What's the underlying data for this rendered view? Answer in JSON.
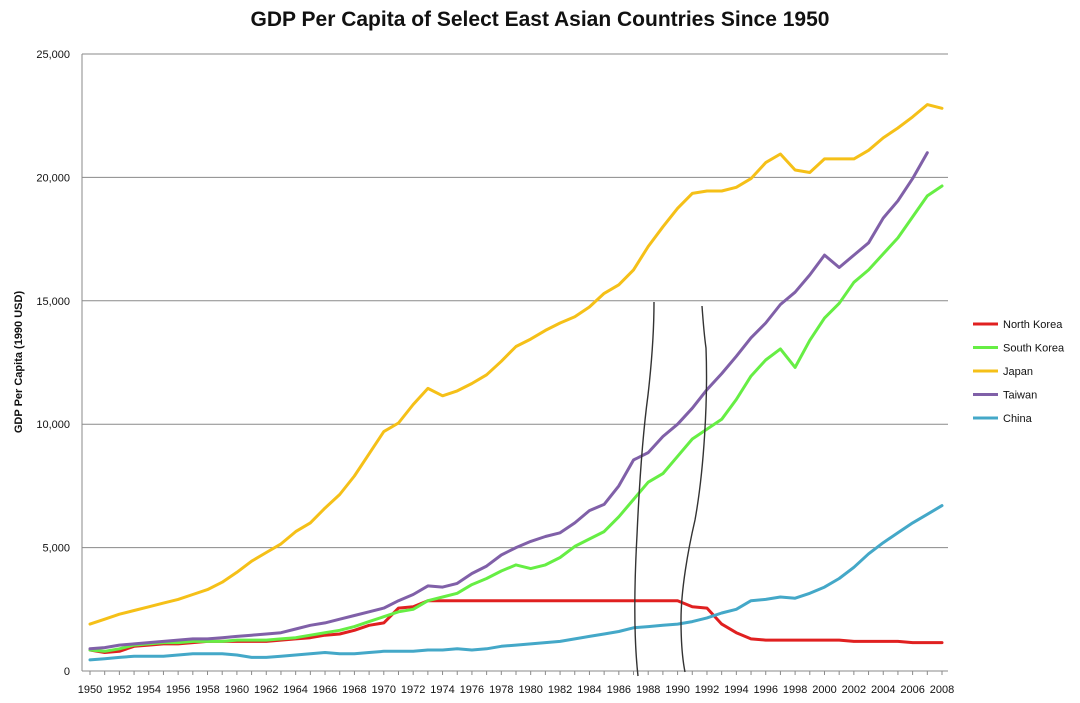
{
  "chart_data": {
    "type": "line",
    "title": "GDP Per Capita of Select East Asian Countries Since 1950",
    "ylabel": "GDP Per Capita  (1990 USD)",
    "xlabel": "",
    "ylim": [
      0,
      25000
    ],
    "xlim": [
      1950,
      2008
    ],
    "yticks": [
      0,
      5000,
      10000,
      15000,
      20000,
      25000
    ],
    "ytick_labels": [
      "0",
      "5,000",
      "10,000",
      "15,000",
      "20,000",
      "25,000"
    ],
    "xtick_labels": [
      "1950",
      "1952",
      "1954",
      "1956",
      "1958",
      "1960",
      "1962",
      "1964",
      "1966",
      "1968",
      "1970",
      "1972",
      "1974",
      "1976",
      "1978",
      "1980",
      "1982",
      "1984",
      "1986",
      "1988",
      "1990",
      "1992",
      "1994",
      "1996",
      "1998",
      "2000",
      "2002",
      "2004",
      "2006",
      "2008"
    ],
    "grid": "horizontal",
    "legend_position": "right",
    "x": [
      1950,
      1951,
      1952,
      1953,
      1954,
      1955,
      1956,
      1957,
      1958,
      1959,
      1960,
      1961,
      1962,
      1963,
      1964,
      1965,
      1966,
      1967,
      1968,
      1969,
      1970,
      1971,
      1972,
      1973,
      1974,
      1975,
      1976,
      1977,
      1978,
      1979,
      1980,
      1981,
      1982,
      1983,
      1984,
      1985,
      1986,
      1987,
      1988,
      1989,
      1990,
      1991,
      1992,
      1993,
      1994,
      1995,
      1996,
      1997,
      1998,
      1999,
      2000,
      2001,
      2002,
      2003,
      2004,
      2005,
      2006,
      2007,
      2008
    ],
    "series": [
      {
        "name": "North Korea",
        "color": "#e02020",
        "values": [
          850,
          750,
          800,
          1000,
          1050,
          1100,
          1100,
          1150,
          1200,
          1200,
          1200,
          1200,
          1200,
          1250,
          1300,
          1350,
          1450,
          1500,
          1650,
          1850,
          1950,
          2550,
          2600,
          2850,
          2850,
          2850,
          2850,
          2850,
          2850,
          2850,
          2850,
          2850,
          2850,
          2850,
          2850,
          2850,
          2850,
          2850,
          2850,
          2850,
          2850,
          2600,
          2550,
          1900,
          1550,
          1300,
          1250,
          1250,
          1250,
          1250,
          1250,
          1250,
          1200,
          1200,
          1200,
          1200,
          1150,
          1150,
          1150
        ]
      },
      {
        "name": "South Korea",
        "color": "#66ee44",
        "values": [
          850,
          800,
          900,
          1050,
          1100,
          1150,
          1150,
          1200,
          1200,
          1200,
          1250,
          1250,
          1250,
          1300,
          1350,
          1450,
          1550,
          1650,
          1800,
          2000,
          2200,
          2400,
          2500,
          2850,
          3000,
          3150,
          3500,
          3750,
          4050,
          4300,
          4150,
          4300,
          4600,
          5050,
          5350,
          5650,
          6250,
          6950,
          7650,
          8000,
          8700,
          9400,
          9800,
          10200,
          11000,
          11950,
          12600,
          13050,
          12300,
          13400,
          14300,
          14900,
          15750,
          16250,
          16900,
          17550,
          18400,
          19250,
          19650
        ]
      },
      {
        "name": "Japan",
        "color": "#f5c018",
        "values": [
          1900,
          2100,
          2300,
          2450,
          2600,
          2750,
          2900,
          3100,
          3300,
          3600,
          4000,
          4450,
          4800,
          5150,
          5650,
          6000,
          6600,
          7150,
          7900,
          8800,
          9700,
          10050,
          10800,
          11450,
          11150,
          11350,
          11650,
          12000,
          12550,
          13150,
          13450,
          13800,
          14100,
          14350,
          14750,
          15300,
          15650,
          16250,
          17200,
          18000,
          18750,
          19350,
          19450,
          19450,
          19600,
          19950,
          20600,
          20950,
          20300,
          20200,
          20750,
          20750,
          20750,
          21100,
          21600,
          22000,
          22450,
          22950,
          22800
        ]
      },
      {
        "name": "Taiwan",
        "color": "#8060a8",
        "values": [
          900,
          950,
          1050,
          1100,
          1150,
          1200,
          1250,
          1300,
          1300,
          1350,
          1400,
          1450,
          1500,
          1550,
          1700,
          1850,
          1950,
          2100,
          2250,
          2400,
          2550,
          2850,
          3100,
          3450,
          3400,
          3550,
          3950,
          4250,
          4700,
          5000,
          5250,
          5450,
          5600,
          6000,
          6500,
          6750,
          7500,
          8550,
          8850,
          9500,
          10000,
          10650,
          11400,
          12050,
          12750,
          13500,
          14100,
          14850,
          15350,
          16050,
          16850,
          16350,
          16850,
          17350,
          18350,
          19050,
          19950,
          21000,
          null
        ]
      },
      {
        "name": "China",
        "color": "#44a8c8",
        "values": [
          450,
          500,
          550,
          600,
          600,
          600,
          650,
          700,
          700,
          700,
          650,
          550,
          550,
          600,
          650,
          700,
          750,
          700,
          700,
          750,
          800,
          800,
          800,
          850,
          850,
          900,
          850,
          900,
          1000,
          1050,
          1100,
          1150,
          1200,
          1300,
          1400,
          1500,
          1600,
          1750,
          1800,
          1850,
          1900,
          2000,
          2150,
          2350,
          2500,
          2850,
          2900,
          3000,
          2950,
          3150,
          3400,
          3750,
          4200,
          4750,
          5200,
          5600,
          6000,
          6350,
          6700
        ]
      }
    ]
  }
}
